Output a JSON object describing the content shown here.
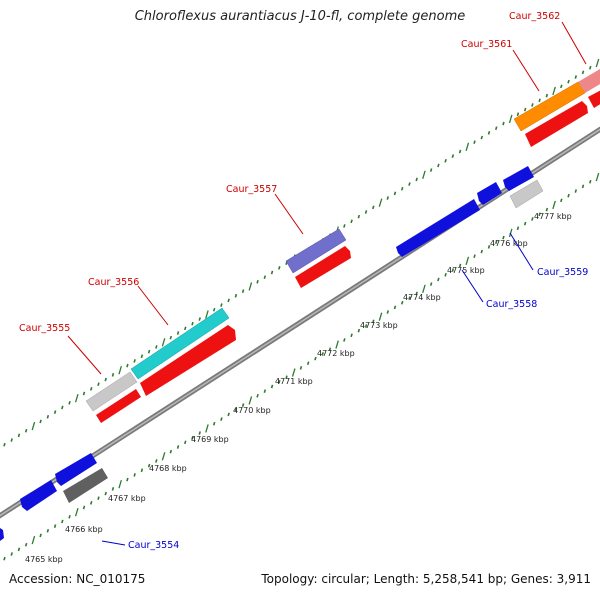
{
  "title": "Chloroflexus aurantiacus J-10-fl, complete genome",
  "footer": {
    "accession": "Accession: NC_010175",
    "summary": "Topology: circular; Length: 5,258,541 bp; Genes: 3,911"
  },
  "colors": {
    "backbone": "#7a7a7a",
    "tick_marks": "#2f7a2f",
    "label_forward": "#cc0000",
    "label_reverse": "#0000cc",
    "gene_red": "#ee1111",
    "gene_blue": "#1010dd",
    "gene_cyan": "#22cccc",
    "gene_purple": "#7070cc",
    "gene_orange": "#ff8c00",
    "gene_pink": "#ee8888",
    "gene_lightgray": "#c8c8c8",
    "gene_darkgray": "#606060"
  },
  "scale_labels": [
    "4765 kbp",
    "4766 kbp",
    "4767 kbp",
    "4768 kbp",
    "4769 kbp",
    "4770 kbp",
    "4771 kbp",
    "4772 kbp",
    "4773 kbp",
    "4774 kbp",
    "4775 kbp",
    "4776 kbp",
    "4777 kbp"
  ],
  "gene_labels": [
    {
      "id": "Caur_3554",
      "strand": "reverse"
    },
    {
      "id": "Caur_3555",
      "strand": "forward"
    },
    {
      "id": "Caur_3556",
      "strand": "forward"
    },
    {
      "id": "Caur_3557",
      "strand": "forward"
    },
    {
      "id": "Caur_3558",
      "strand": "reverse"
    },
    {
      "id": "Caur_3559",
      "strand": "reverse"
    },
    {
      "id": "Caur_3561",
      "strand": "forward"
    },
    {
      "id": "Caur_3562",
      "strand": "forward"
    }
  ]
}
